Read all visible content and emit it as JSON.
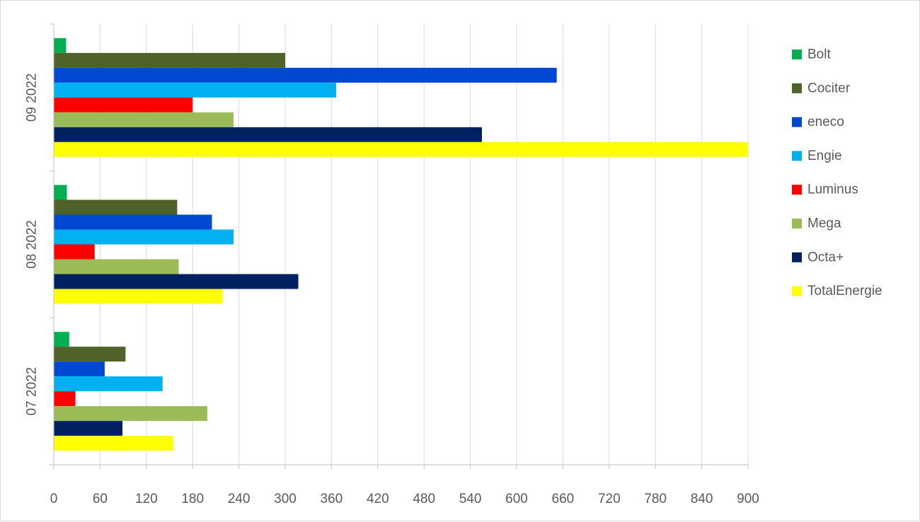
{
  "chart_data": {
    "type": "bar",
    "orientation": "horizontal",
    "title": "",
    "xlabel": "",
    "ylabel": "",
    "xlim": [
      0,
      900
    ],
    "x_ticks": [
      0,
      60,
      120,
      180,
      240,
      300,
      360,
      420,
      480,
      540,
      600,
      660,
      720,
      780,
      840,
      900
    ],
    "grid": "vertical",
    "legend_position": "right",
    "categories": [
      "07 2022",
      "08 2022",
      "09 2022"
    ],
    "series": [
      {
        "name": "Bolt",
        "color": "#00b050",
        "values": [
          20,
          17,
          16
        ]
      },
      {
        "name": "Cociter",
        "color": "#4f6228",
        "values": [
          93,
          160,
          300
        ]
      },
      {
        "name": "eneco",
        "color": "#0047d1",
        "values": [
          66,
          205,
          652
        ]
      },
      {
        "name": "Engie",
        "color": "#00b0f0",
        "values": [
          141,
          233,
          366
        ]
      },
      {
        "name": "Luminus",
        "color": "#ff0000",
        "values": [
          28,
          53,
          180
        ]
      },
      {
        "name": "Mega",
        "color": "#9bbb59",
        "values": [
          199,
          162,
          233
        ]
      },
      {
        "name": "Octa+",
        "color": "#002060",
        "values": [
          89,
          317,
          555
        ]
      },
      {
        "name": "TotalEnergie",
        "color": "#ffff00",
        "values": [
          155,
          219,
          900
        ]
      }
    ]
  }
}
